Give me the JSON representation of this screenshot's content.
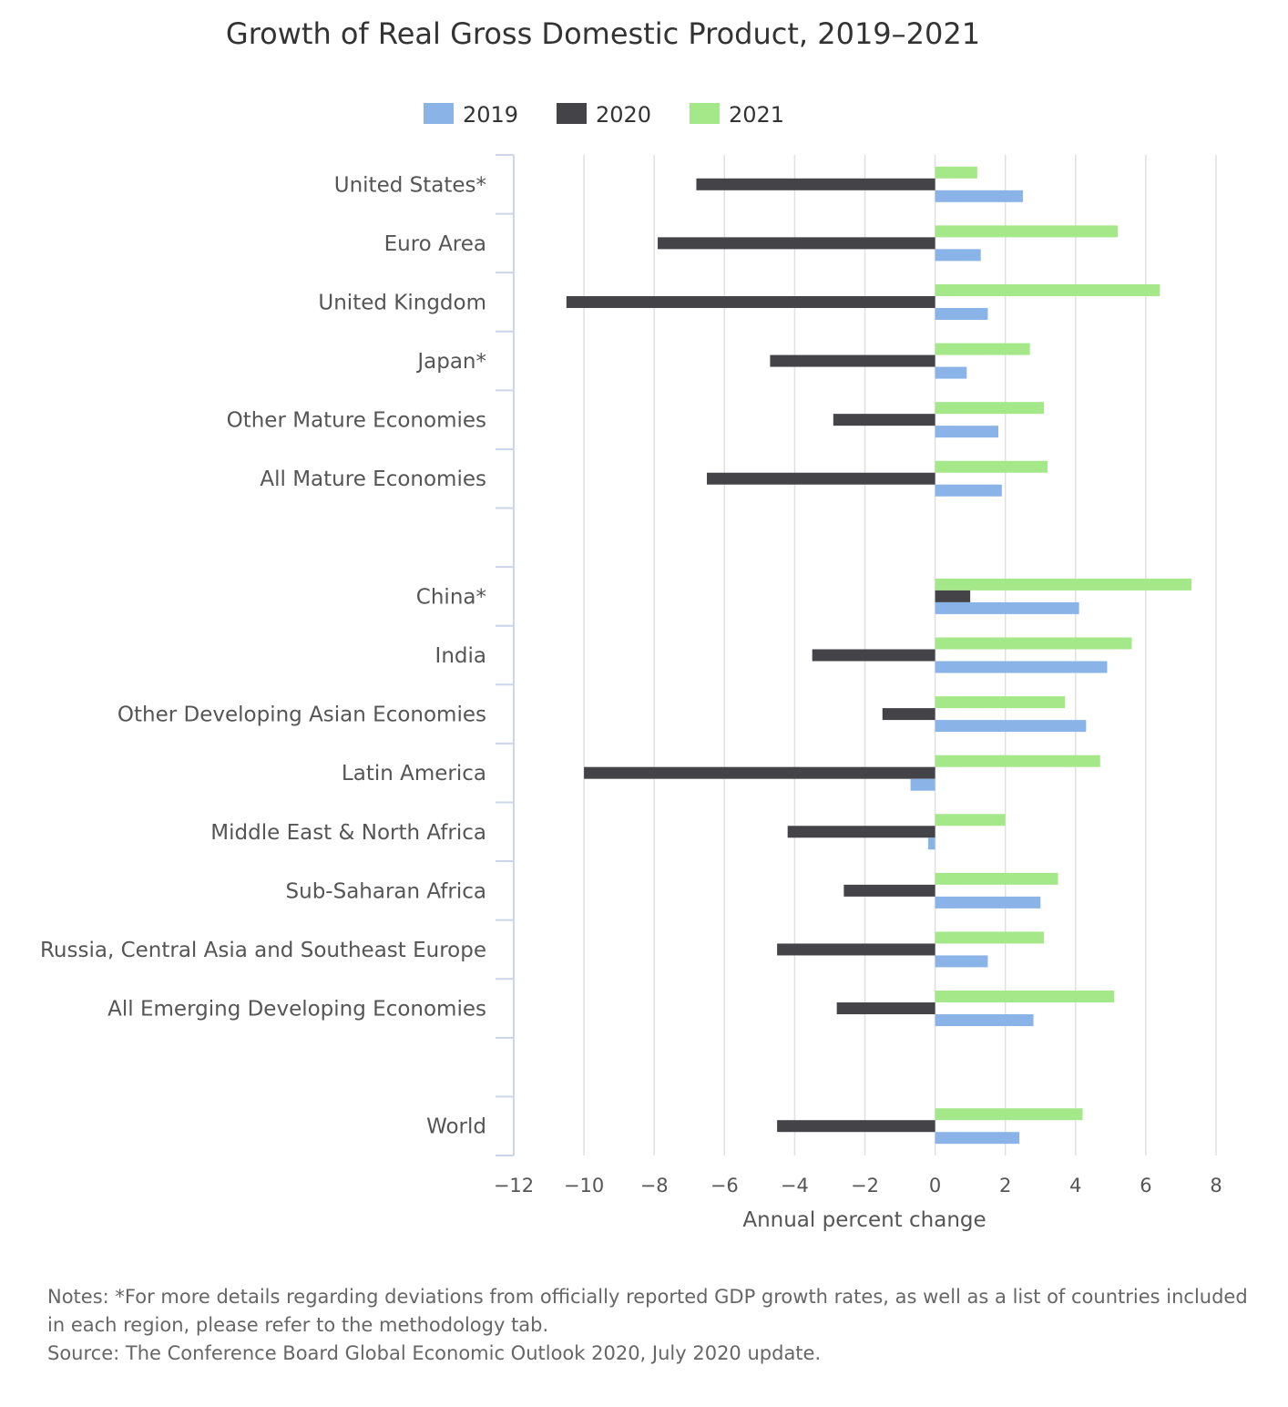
{
  "chart_data": {
    "type": "bar",
    "orientation": "horizontal",
    "title": "Growth of Real Gross Domestic Product, 2019–2021",
    "xlabel": "Annual percent change",
    "ylabel": "",
    "xlim": [
      -12,
      8
    ],
    "x_ticks": [
      -12,
      -10,
      -8,
      -6,
      -4,
      -2,
      0,
      2,
      4,
      6,
      8
    ],
    "x_tick_labels": [
      "−12",
      "−10",
      "−8",
      "−6",
      "−4",
      "−2",
      "0",
      "2",
      "4",
      "6",
      "8"
    ],
    "grid": "vertical",
    "legend_position": "top-center",
    "categories": [
      "United States*",
      "Euro Area",
      "United Kingdom",
      "Japan*",
      "Other Mature Economies",
      "All Mature Economies",
      "",
      "China*",
      "India",
      "Other Developing Asian Economies",
      "Latin America",
      "Middle East & North Africa",
      "Sub-Saharan Africa",
      "Russia, Central Asia and Southeast Europe",
      "All Emerging Developing Economies",
      "",
      "World"
    ],
    "series": [
      {
        "name": "2019",
        "color": "#8ab4e8",
        "values": [
          2.5,
          1.3,
          1.5,
          0.9,
          1.8,
          1.9,
          null,
          4.1,
          4.9,
          4.3,
          -0.7,
          -0.2,
          3.0,
          1.5,
          2.8,
          null,
          2.4
        ]
      },
      {
        "name": "2020",
        "color": "#434348",
        "values": [
          -6.8,
          -7.9,
          -10.5,
          -4.7,
          -2.9,
          -6.5,
          null,
          1.0,
          -3.5,
          -1.5,
          -10.0,
          -4.2,
          -2.6,
          -4.5,
          -2.8,
          null,
          -4.5
        ]
      },
      {
        "name": "2021",
        "color": "#a5e88a",
        "values": [
          1.2,
          5.2,
          6.4,
          2.7,
          3.1,
          3.2,
          null,
          7.3,
          5.6,
          3.7,
          4.7,
          2.0,
          3.5,
          3.1,
          5.1,
          null,
          4.2
        ]
      }
    ]
  },
  "notes": {
    "line1": "Notes: *For more details regarding deviations from officially reported GDP growth rates, as well as a list of countries included in each region, please refer to the methodology tab.",
    "source": "Source: The Conference Board Global Economic Outlook 2020, July 2020 update."
  }
}
